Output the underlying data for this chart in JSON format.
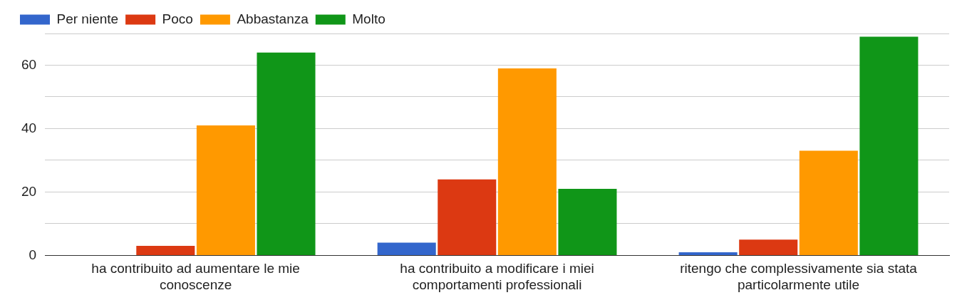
{
  "chart_data": {
    "type": "bar",
    "categories": [
      "ha contribuito ad aumentare le mie conoscenze",
      "ha contribuito a modificare i miei comportamenti professionali",
      "ritengo che complessivamente sia stata particolarmente utile"
    ],
    "series": [
      {
        "name": "Per niente",
        "color": "#3366cc",
        "values": [
          0,
          4,
          1
        ]
      },
      {
        "name": "Poco",
        "color": "#dc3912",
        "values": [
          3,
          24,
          5
        ]
      },
      {
        "name": "Abbastanza",
        "color": "#ff9900",
        "values": [
          41,
          59,
          33
        ]
      },
      {
        "name": "Molto",
        "color": "#109618",
        "values": [
          64,
          21,
          69
        ]
      }
    ],
    "ylim": [
      0,
      70
    ],
    "yticks": [
      0,
      {
        "value": 10,
        "label": null
      },
      20,
      {
        "value": 30,
        "label": null
      },
      40,
      {
        "value": 50,
        "label": null
      },
      60,
      {
        "value": 70,
        "label": null
      }
    ],
    "grid": "y",
    "legend": "top left"
  }
}
